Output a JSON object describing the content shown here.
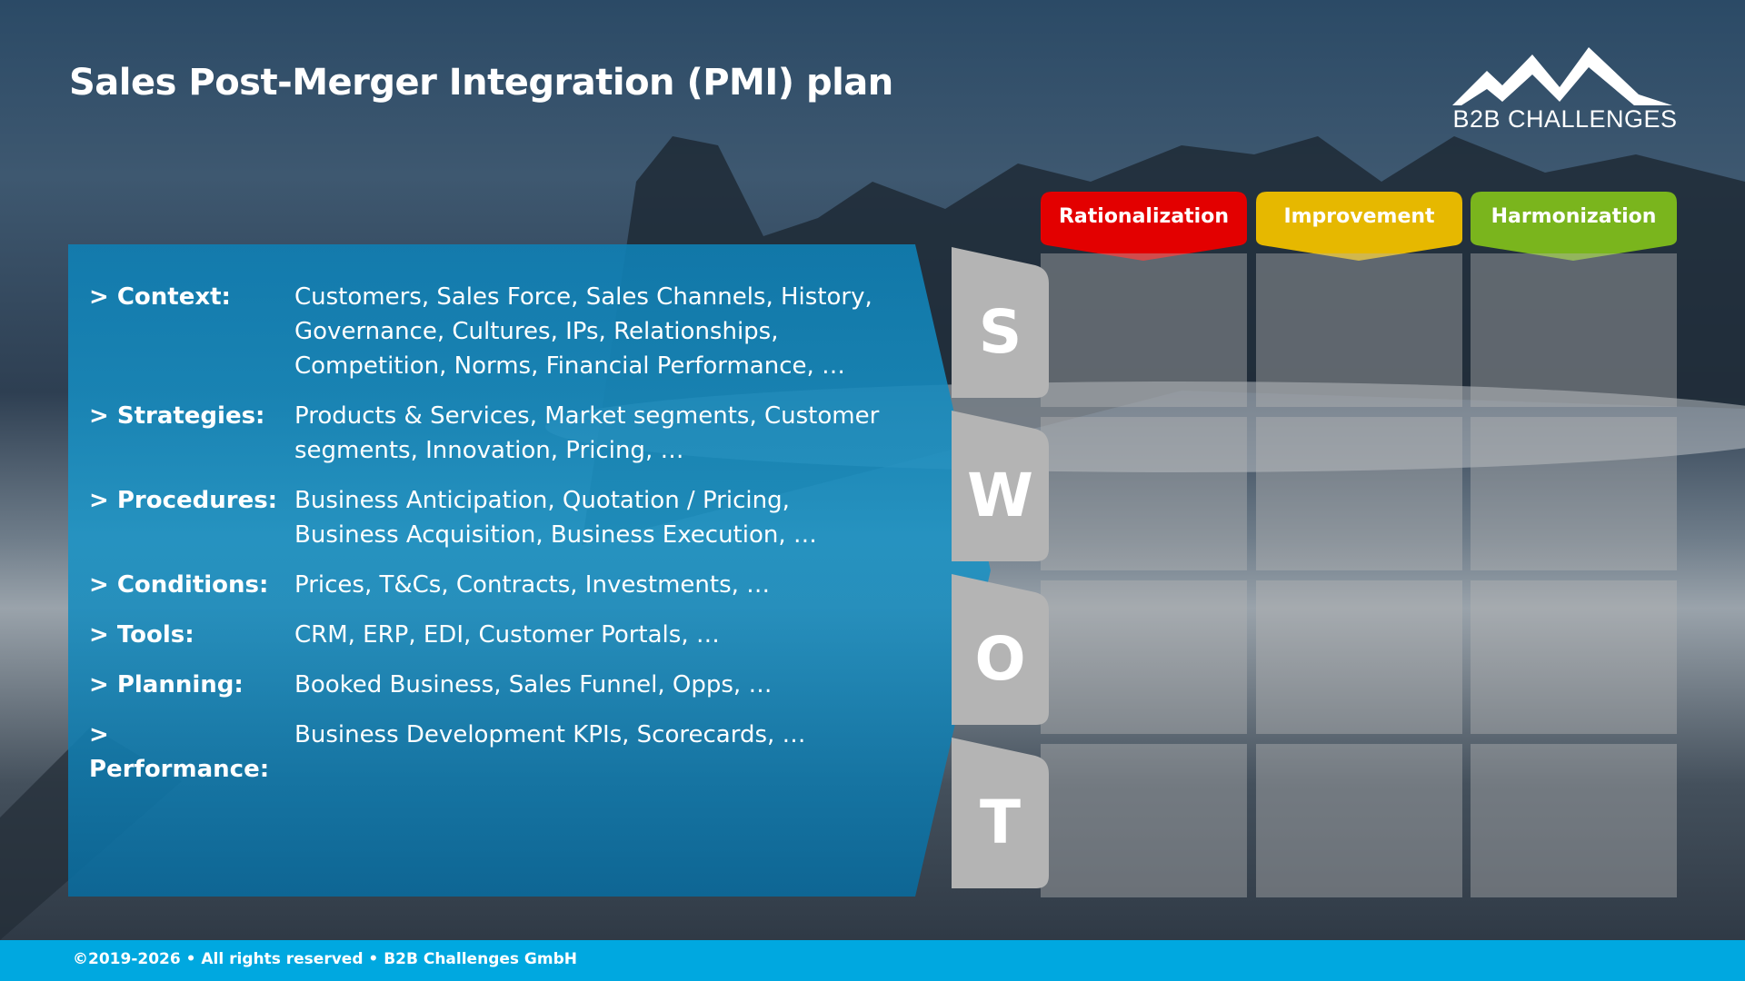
{
  "title": "Sales Post-Merger Integration (PMI) plan",
  "logo": {
    "text": "B2B CHALLENGES"
  },
  "items": [
    {
      "label": "> Context:",
      "value": "Customers, Sales Force, Sales Channels, History, Governance, Cultures, IPs, Relationships, Competition, Norms, Financial Performance, …"
    },
    {
      "label": "> Strategies:",
      "value": "Products & Services, Market segments, Customer segments, Innovation, Pricing, …"
    },
    {
      "label": "> Procedures:",
      "value": "Business Anticipation, Quotation / Pricing, Business Acquisition, Business Execution, …"
    },
    {
      "label": "> Conditions:",
      "value": "Prices, T&Cs, Contracts, Investments, …"
    },
    {
      "label": "> Tools:",
      "value": "CRM, ERP, EDI, Customer Portals, …"
    },
    {
      "label": "> Planning:",
      "value": "Booked Business, Sales Funnel, Opps, …"
    },
    {
      "label": "> Performance:",
      "value": "Business Development KPIs, Scorecards, …"
    }
  ],
  "columns": [
    {
      "label": "Rationalization",
      "color": "#e30000"
    },
    {
      "label": "Improvement",
      "color": "#e6b800"
    },
    {
      "label": "Harmonization",
      "color": "#7ab51d"
    }
  ],
  "swot": [
    "S",
    "W",
    "O",
    "T"
  ],
  "footer": "©2019-2026 • All rights reserved • B2B Challenges GmbH"
}
